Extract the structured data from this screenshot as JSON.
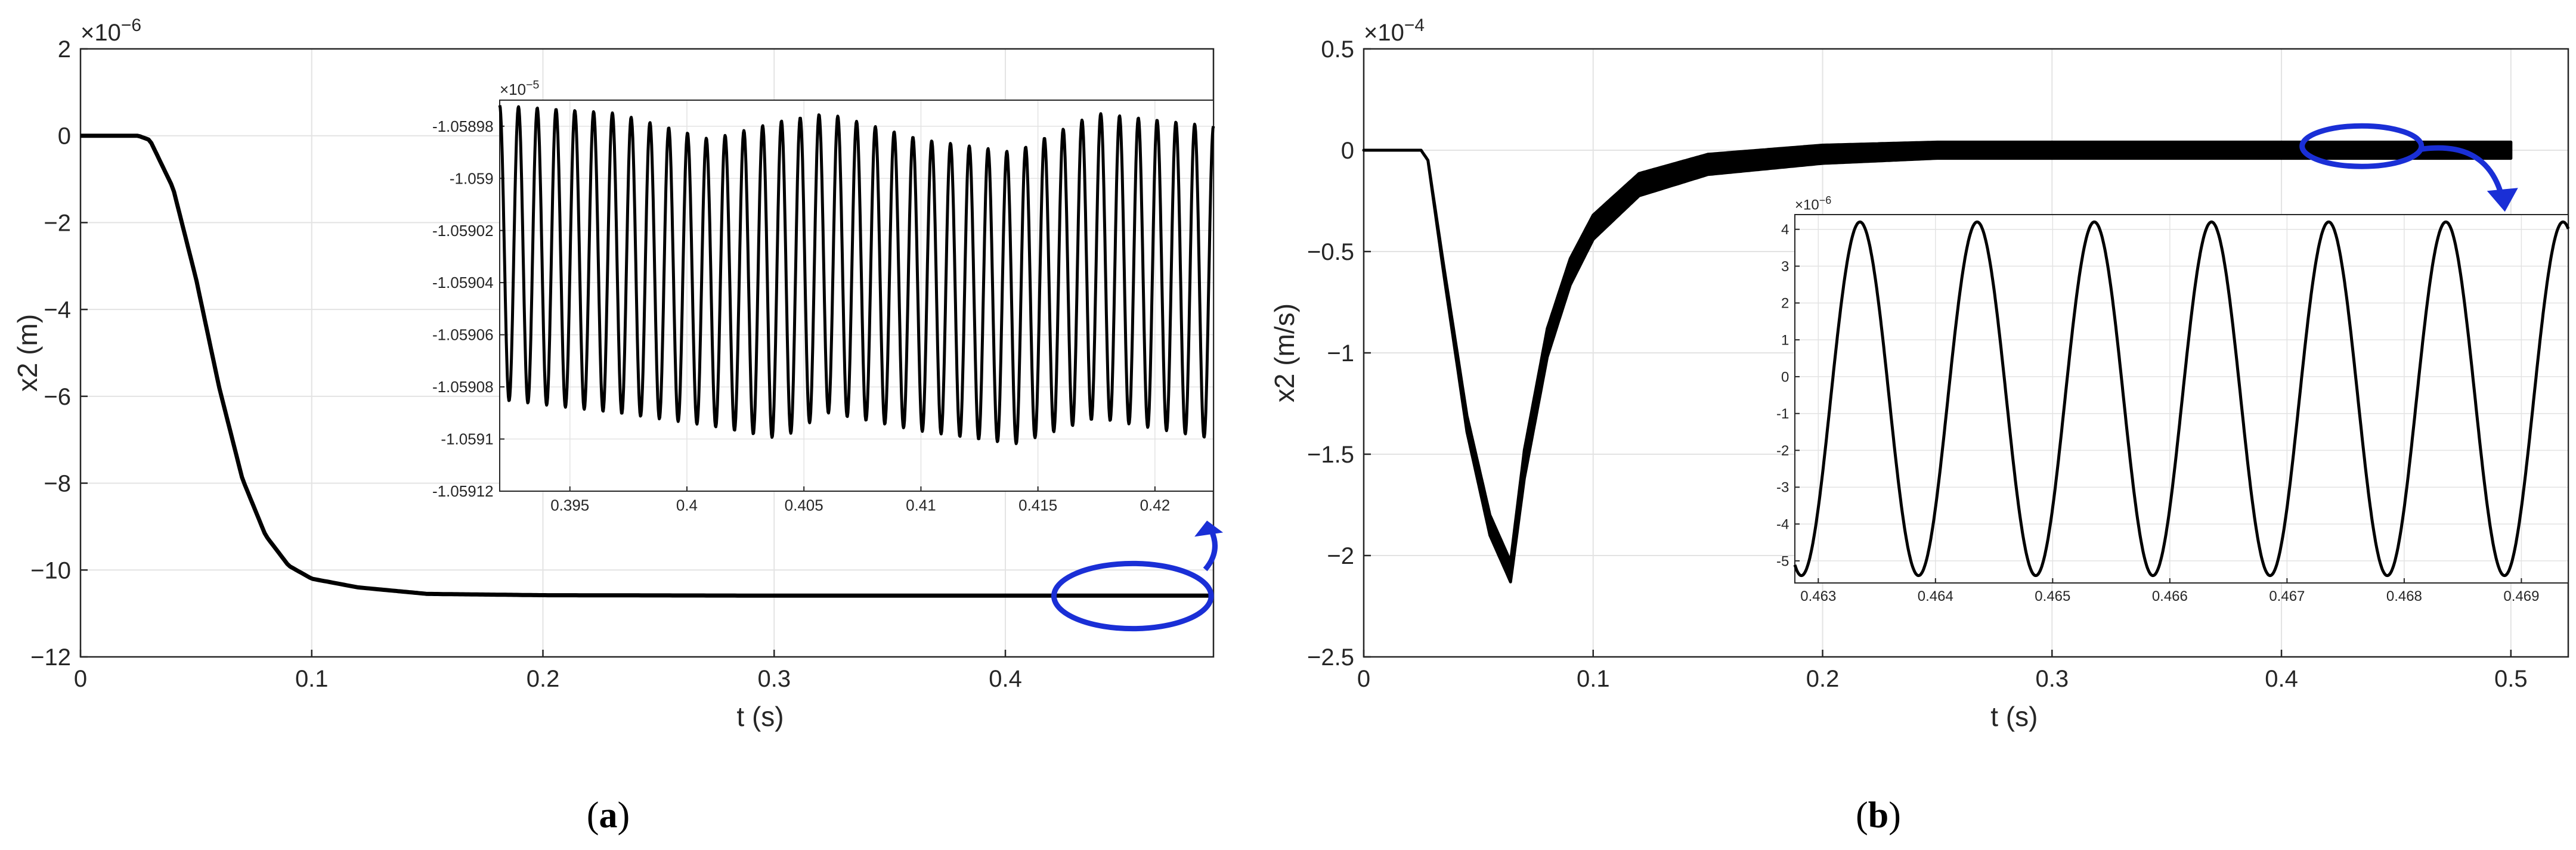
{
  "chart_data": [
    {
      "id": "a",
      "type": "line",
      "panel_label": "a",
      "xlabel": "t (s)",
      "ylabel": "x2 (m)",
      "y_exponent": "×10",
      "y_exponent_power": "−6",
      "xlim": [
        0,
        0.49
      ],
      "ylim": [
        -12,
        2
      ],
      "xticks": [
        0,
        0.1,
        0.2,
        0.3,
        0.4
      ],
      "xtick_labels": [
        "0",
        "0.1",
        "0.2",
        "0.3",
        "0.4"
      ],
      "yticks": [
        -12,
        -10,
        -8,
        -6,
        -4,
        -2,
        0,
        2
      ],
      "ytick_labels": [
        "−12",
        "−10",
        "−8",
        "−6",
        "−4",
        "−2",
        "0",
        "2"
      ],
      "grid": true,
      "series": [
        {
          "values_description_free": true,
          "x": [
            0,
            0.025,
            0.03,
            0.04,
            0.05,
            0.06,
            0.07,
            0.08,
            0.09,
            0.1,
            0.12,
            0.15,
            0.2,
            0.3,
            0.4,
            0.49
          ],
          "y": [
            0,
            0,
            -0.1,
            -1.2,
            -3.3,
            -5.8,
            -7.9,
            -9.2,
            -9.9,
            -10.2,
            -10.4,
            -10.55,
            -10.58,
            -10.59,
            -10.59,
            -10.59
          ]
        }
      ],
      "highlight_ellipse": {
        "cx": 0.455,
        "cy": -10.6,
        "rx": 0.034,
        "ry": 0.75
      },
      "inset": {
        "xlim": [
          0.392,
          0.4225
        ],
        "ylim": [
          -1.05912,
          -1.05897
        ],
        "y_exponent": "×10",
        "y_exponent_power": "−5",
        "xticks": [
          0.395,
          0.4,
          0.405,
          0.41,
          0.415,
          0.42
        ],
        "xtick_labels": [
          "0.395",
          "0.4",
          "0.405",
          "0.41",
          "0.415",
          "0.42"
        ],
        "yticks": [
          -1.05912,
          -1.0591,
          -1.05908,
          -1.05906,
          -1.05904,
          -1.05902,
          -1.059,
          -1.05898
        ],
        "ytick_labels": [
          "-1.05912",
          "-1.0591",
          "-1.05908",
          "-1.05906",
          "-1.05904",
          "-1.05902",
          "-1.059",
          "-1.05898"
        ],
        "oscillation": {
          "cycles": 38,
          "upper_envelope": [
            [
              0.392,
              -1.058972
            ],
            [
              0.397,
              -1.058975
            ],
            [
              0.401,
              -1.058985
            ],
            [
              0.404,
              -1.058978
            ],
            [
              0.406,
              -1.058975
            ],
            [
              0.41,
              -1.058985
            ],
            [
              0.414,
              -1.05899
            ],
            [
              0.4175,
              -1.058975
            ],
            [
              0.4225,
              -1.05898
            ]
          ],
          "lower_envelope": [
            [
              0.392,
              -1.059085
            ],
            [
              0.397,
              -1.05909
            ],
            [
              0.401,
              -1.059095
            ],
            [
              0.404,
              -1.0591
            ],
            [
              0.406,
              -1.05909
            ],
            [
              0.41,
              -1.059097
            ],
            [
              0.414,
              -1.059102
            ],
            [
              0.4175,
              -1.059092
            ],
            [
              0.4225,
              -1.0591
            ]
          ]
        }
      }
    },
    {
      "id": "b",
      "type": "line",
      "panel_label": "b",
      "xlabel": "t  (s)",
      "ylabel": "x2  (m/s)",
      "y_exponent": "×10",
      "y_exponent_power": "−4",
      "xlim": [
        0,
        0.525
      ],
      "ylim": [
        -2.5,
        0.5
      ],
      "xticks": [
        0,
        0.1,
        0.2,
        0.3,
        0.4,
        0.5
      ],
      "xtick_labels": [
        "0",
        "0.1",
        "0.2",
        "0.3",
        "0.4",
        "0.5"
      ],
      "yticks": [
        -2.5,
        -2,
        -1.5,
        -1,
        -0.5,
        0,
        0.5
      ],
      "ytick_labels": [
        "−2.5",
        "−2",
        "−1.5",
        "−1",
        "−0.5",
        "0",
        "0.5"
      ],
      "grid": true,
      "series": [
        {
          "x": [
            0,
            0.025,
            0.028,
            0.035,
            0.045,
            0.055,
            0.064,
            0.07,
            0.08,
            0.09,
            0.1,
            0.12,
            0.15,
            0.2,
            0.25,
            0.3,
            0.4,
            0.5
          ],
          "y": [
            0,
            0,
            -0.05,
            -0.6,
            -1.35,
            -1.85,
            -2.08,
            -1.55,
            -0.95,
            -0.6,
            -0.38,
            -0.17,
            -0.07,
            -0.02,
            0,
            0,
            0,
            0
          ],
          "band_halfwidth": [
            0,
            0,
            0,
            0.02,
            0.04,
            0.05,
            0.05,
            0.07,
            0.07,
            0.065,
            0.06,
            0.055,
            0.05,
            0.045,
            0.04,
            0.04,
            0.04,
            0.04
          ]
        }
      ],
      "highlight_ellipse": {
        "cx": 0.435,
        "cy": 0.02,
        "rx": 0.026,
        "ry": 0.1
      },
      "inset": {
        "xlim": [
          0.4628,
          0.4694
        ],
        "ylim": [
          -5.6,
          4.4
        ],
        "y_exponent": "×10",
        "y_exponent_power": "−6",
        "xticks": [
          0.463,
          0.464,
          0.465,
          0.466,
          0.467,
          0.468,
          0.469
        ],
        "xtick_labels": [
          "0.463",
          "0.464",
          "0.465",
          "0.466",
          "0.467",
          "0.468",
          "0.469"
        ],
        "yticks": [
          -5,
          -4,
          -3,
          -2,
          -1,
          0,
          1,
          2,
          3,
          4
        ],
        "ytick_labels": [
          "-5",
          "-4",
          "-3",
          "-2",
          "-1",
          "0",
          "1",
          "2",
          "3",
          "4"
        ],
        "oscillation": {
          "frequency_cycles_per_ms": 1.0,
          "amplitude": 4.8,
          "offset": -0.6,
          "phase_at_start": 0.4628
        }
      }
    }
  ]
}
